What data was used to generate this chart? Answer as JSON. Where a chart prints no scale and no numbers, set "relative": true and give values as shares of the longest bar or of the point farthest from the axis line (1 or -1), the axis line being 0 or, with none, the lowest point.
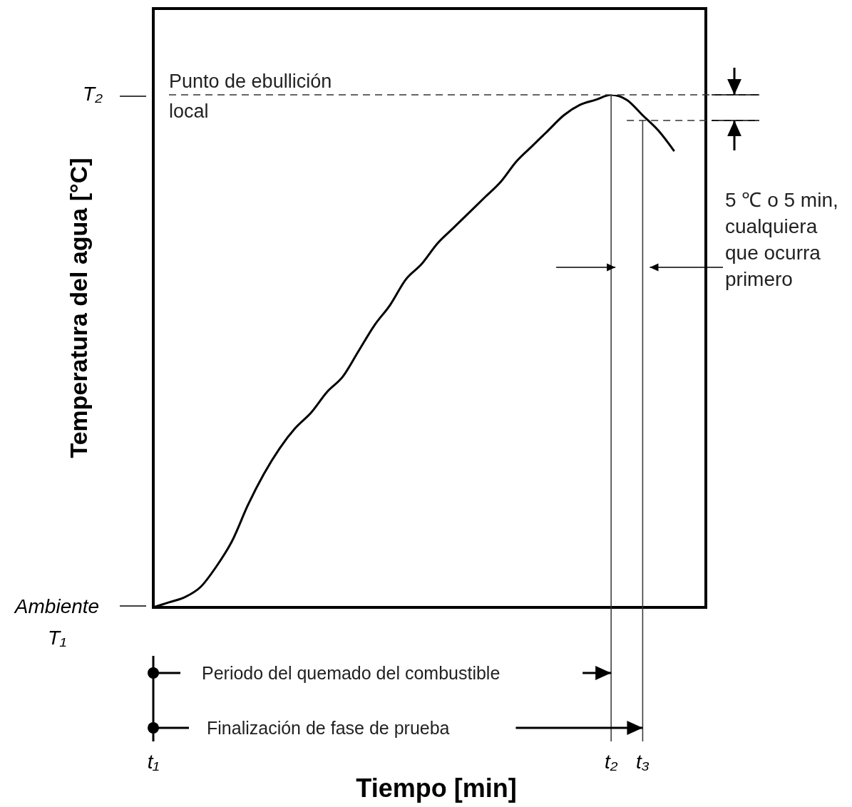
{
  "chart_data": {
    "type": "line",
    "relative": true,
    "xlabel": "Tiempo [min]",
    "ylabel": "Temperatura del agua [°C]",
    "categories": [
      "t₁",
      null,
      null,
      null,
      null,
      null,
      null,
      null,
      null,
      null,
      null,
      null,
      null,
      null,
      null,
      null,
      null,
      null,
      null,
      null,
      null,
      null,
      null,
      null,
      null,
      null,
      null,
      null,
      null,
      "t₂",
      null,
      "t₃",
      null,
      null,
      null,
      null
    ],
    "series": [
      {
        "color": "#000000",
        "values": [
          0,
          0.01,
          0.02,
          0.04,
          0.08,
          0.13,
          0.2,
          0.26,
          0.31,
          0.35,
          0.38,
          0.42,
          0.45,
          0.5,
          0.55,
          0.59,
          0.64,
          0.67,
          0.71,
          0.74,
          0.77,
          0.8,
          0.83,
          0.87,
          0.9,
          0.93,
          0.96,
          0.98,
          0.99,
          1,
          0.99,
          0.96,
          0.93,
          0.89,
          null,
          null
        ]
      }
    ],
    "ref_lines": [
      {
        "axis": "y",
        "value": 1,
        "label": "Punto de ebullición local",
        "line_style": "dashed"
      },
      {
        "axis": "y",
        "value": 0.95,
        "line_style": "dashed"
      },
      {
        "axis": "x",
        "value": "t₂"
      },
      {
        "axis": "x",
        "value": "t₃"
      }
    ],
    "annotations": [
      "T₂",
      "Ambiente T₁",
      "Periodo del quemado del combustible",
      "Finalización de fase de prueba",
      "5 ℃ o 5 min, cualquiera que ocurra primero"
    ],
    "marker": "none",
    "line_style": "solid"
  }
}
